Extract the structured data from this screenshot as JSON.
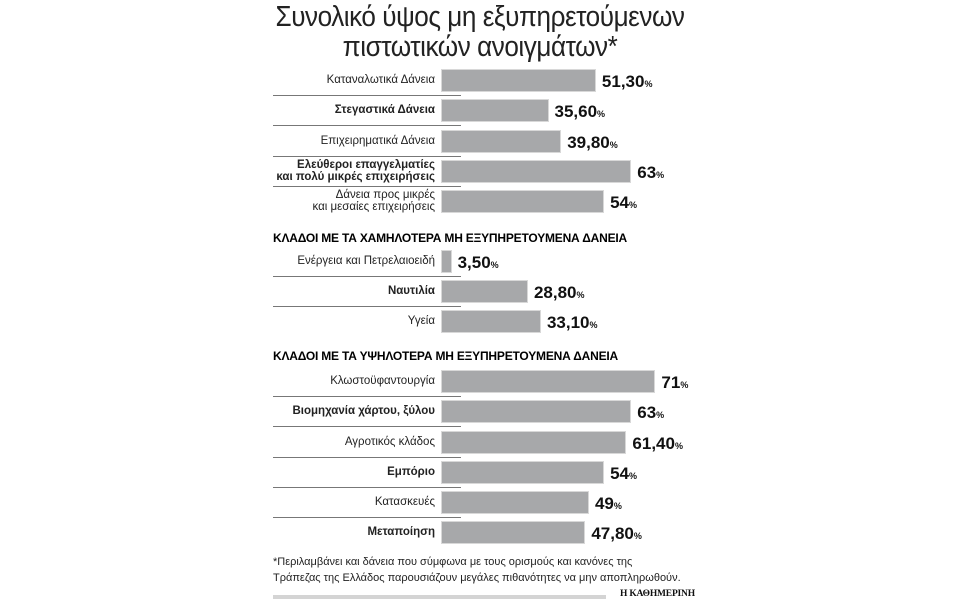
{
  "chart_data": {
    "type": "bar",
    "orientation": "horizontal",
    "title": [
      "Συνολικό ύψος μη εξυπηρετούμενων",
      "πιστωτικών ανοιγμάτων*"
    ],
    "unit": "%",
    "xlim": [
      0,
      100
    ],
    "bar_color": "#a7a8aa",
    "sections": [
      {
        "heading": "",
        "items": [
          {
            "label": [
              "Καταναλωτικά Δάνεια"
            ],
            "value": 51.3,
            "display": "51,30",
            "bold": false
          },
          {
            "label": [
              "Στεγαστικά Δάνεια"
            ],
            "value": 35.6,
            "display": "35,60",
            "bold": true
          },
          {
            "label": [
              "Επιχειρηματικά Δάνεια"
            ],
            "value": 39.8,
            "display": "39,80",
            "bold": false
          },
          {
            "label": [
              "Ελεύθεροι επαγγελματίες",
              "και πολύ μικρές επιχειρήσεις"
            ],
            "value": 63,
            "display": "63",
            "bold": true
          },
          {
            "label": [
              "Δάνεια προς μικρές",
              "και μεσαίες επιχειρήσεις"
            ],
            "value": 54,
            "display": "54",
            "bold": false
          }
        ]
      },
      {
        "heading": "ΚΛΑΔΟΙ ΜΕ ΤΑ ΧΑΜΗΛΟΤΕΡΑ ΜΗ ΕΞΥΠΗΡΕΤΟΥΜΕΝΑ ΔΑΝΕΙΑ",
        "items": [
          {
            "label": [
              "Ενέργεια και Πετρελαιοειδή"
            ],
            "value": 3.5,
            "display": "3,50",
            "bold": false
          },
          {
            "label": [
              "Ναυτιλία"
            ],
            "value": 28.8,
            "display": "28,80",
            "bold": true
          },
          {
            "label": [
              "Υγεία"
            ],
            "value": 33.1,
            "display": "33,10",
            "bold": false
          }
        ]
      },
      {
        "heading": "ΚΛΑΔΟΙ ΜΕ ΤΑ ΥΨΗΛΟΤΕΡΑ ΜΗ ΕΞΥΠΗΡΕΤΟΥΜΕΝΑ ΔΑΝΕΙΑ",
        "items": [
          {
            "label": [
              "Κλωστοϋφαντουργία"
            ],
            "value": 71,
            "display": "71",
            "bold": false
          },
          {
            "label": [
              "Βιομηχανία χάρτου, ξύλου"
            ],
            "value": 63,
            "display": "63",
            "bold": true
          },
          {
            "label": [
              "Αγροτικός κλάδος"
            ],
            "value": 61.4,
            "display": "61,40",
            "bold": false
          },
          {
            "label": [
              "Εμπόριο"
            ],
            "value": 54,
            "display": "54",
            "bold": true
          },
          {
            "label": [
              "Κατασκευές"
            ],
            "value": 49,
            "display": "49",
            "bold": false
          },
          {
            "label": [
              "Μεταποίηση"
            ],
            "value": 47.8,
            "display": "47,80",
            "bold": true
          }
        ]
      }
    ]
  },
  "footnote": [
    "*Περιλαμβάνει και δάνεια που σύμφωνα με τους ορισμούς και κανόνες της",
    "Τράπεζας της Ελλάδος παρουσιάζουν μεγάλες πιθανότητες να μην αποπληρωθούν."
  ],
  "brand": "Η ΚΑΘΗΜΕΡΙΝΗ"
}
